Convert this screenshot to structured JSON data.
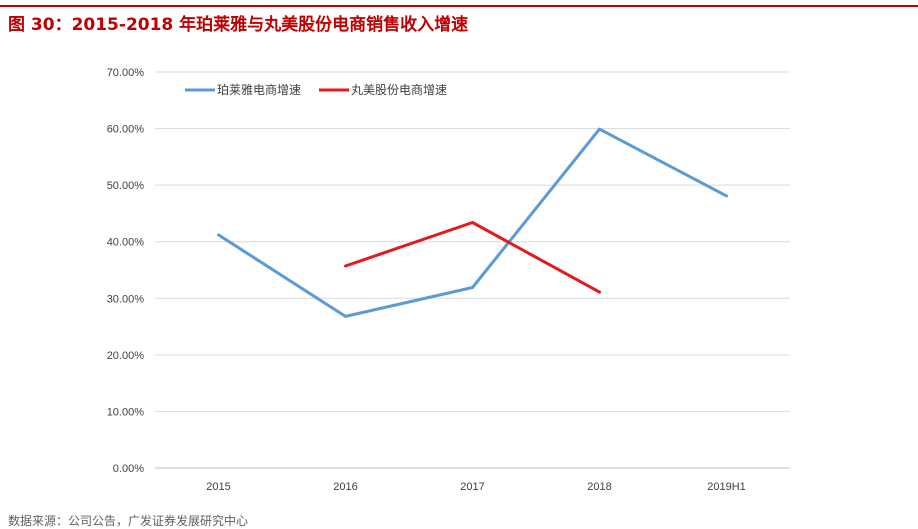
{
  "figure": {
    "title": "图 30：2015-2018 年珀莱雅与丸美股份电商销售收入增速",
    "source": "数据来源：公司公告，广发证券发展研究中心"
  },
  "chart_data": {
    "type": "line",
    "categories": [
      "2015",
      "2016",
      "2017",
      "2018",
      "2019H1"
    ],
    "series": [
      {
        "name": "珀莱雅电商增速",
        "color": "#5b9bd5",
        "values": [
          0.412,
          0.268,
          0.319,
          0.599,
          0.481
        ]
      },
      {
        "name": "丸美股份电商增速",
        "color": "#e31a1c",
        "values": [
          null,
          0.357,
          0.434,
          0.311,
          null
        ]
      }
    ],
    "y_ticks": [
      "0.00%",
      "10.00%",
      "20.00%",
      "30.00%",
      "40.00%",
      "50.00%",
      "60.00%",
      "70.00%"
    ],
    "ylim": [
      0,
      0.7
    ],
    "grid": true,
    "legend_position": "top-left"
  }
}
